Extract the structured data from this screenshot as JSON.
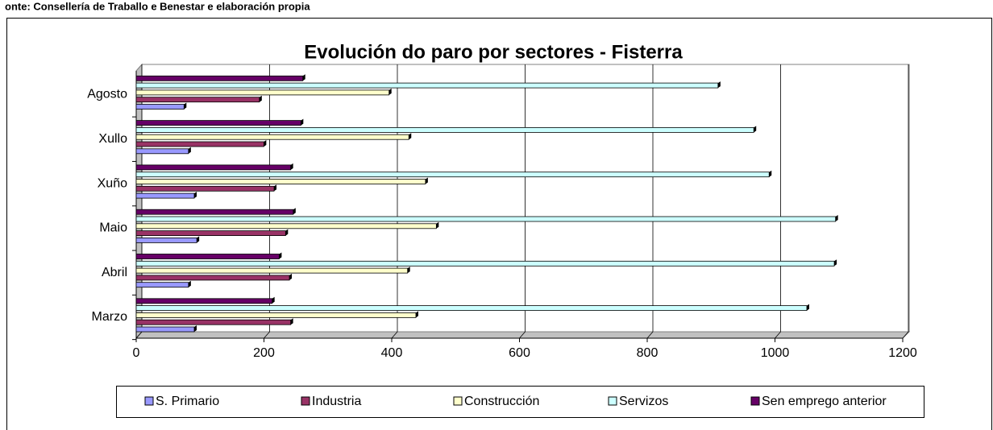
{
  "source": "onte: Consellería de Traballo e Benestar e elaboración propia",
  "chart_data": {
    "type": "bar",
    "orientation": "horizontal",
    "title": "Evolución do paro por sectores - Fisterra",
    "categories": [
      "Marzo",
      "Abril",
      "Maio",
      "Xuño",
      "Xullo",
      "Agosto"
    ],
    "series": [
      {
        "name": "S. Primario",
        "color": "#9999ff",
        "values": [
          82,
          73,
          86,
          82,
          73,
          66
        ]
      },
      {
        "name": "Industria",
        "color": "#993366",
        "values": [
          233,
          231,
          225,
          207,
          191,
          184
        ]
      },
      {
        "name": "Construcción",
        "color": "#ffffcc",
        "values": [
          429,
          416,
          461,
          444,
          418,
          387
        ]
      },
      {
        "name": "Servizos",
        "color": "#ccffff",
        "values": [
          1041,
          1084,
          1086,
          982,
          958,
          902
        ]
      },
      {
        "name": "Sen emprego anterior",
        "color": "#660066",
        "values": [
          204,
          215,
          237,
          233,
          249,
          252
        ]
      }
    ],
    "xlim": [
      0,
      1200
    ],
    "xticks": [
      0,
      200,
      400,
      600,
      800,
      1000,
      1200
    ],
    "grid": true,
    "legend": "bottom"
  }
}
